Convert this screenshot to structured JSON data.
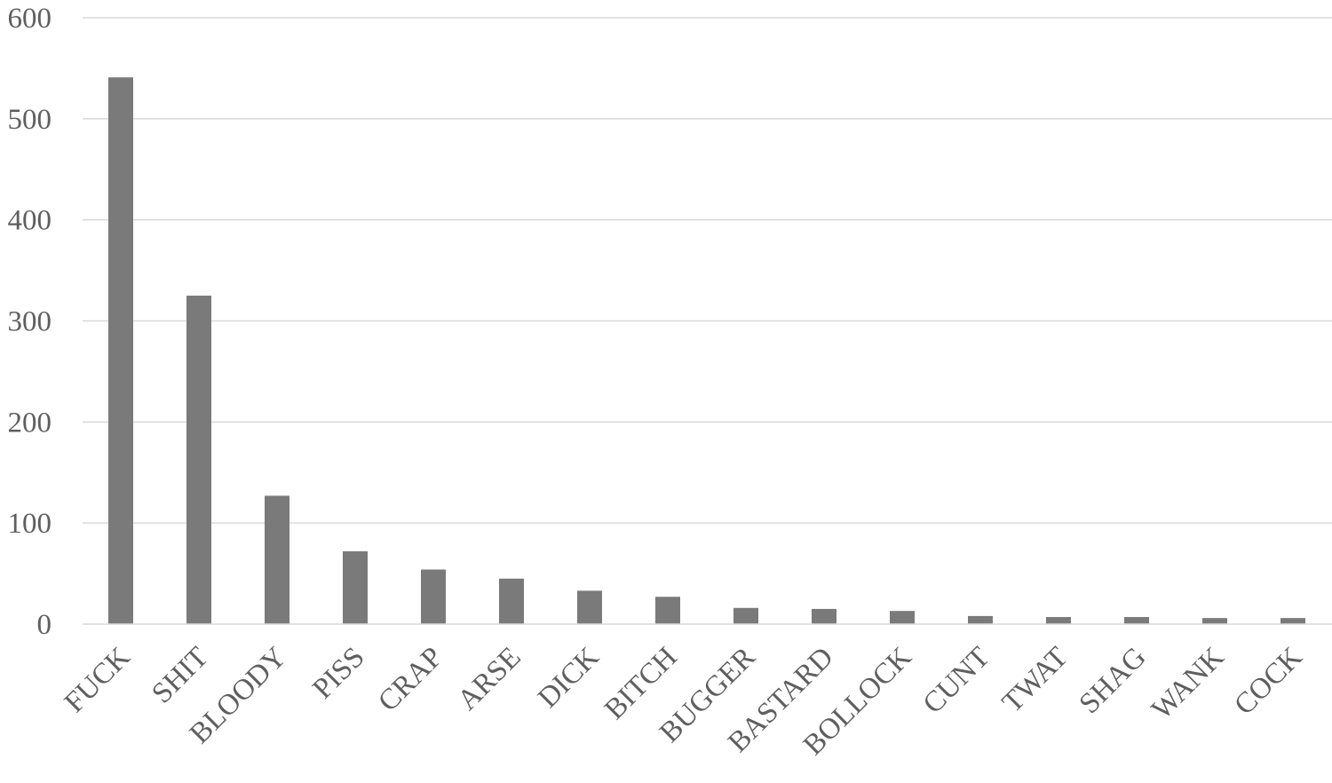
{
  "chart_data": {
    "type": "bar",
    "title": "",
    "xlabel": "",
    "ylabel": "",
    "ylim": [
      0,
      600
    ],
    "yticks": [
      0,
      100,
      200,
      300,
      400,
      500,
      600
    ],
    "grid": true,
    "legend": "none",
    "bar_color": "#7a7a7a",
    "grid_color": "#d9d9d9",
    "text_color": "#5f5f5f",
    "categories": [
      "FUCK",
      "SHIT",
      "BLOODY",
      "PISS",
      "CRAP",
      "ARSE",
      "DICK",
      "BITCH",
      "BUGGER",
      "BASTARD",
      "BOLLOCK",
      "CUNT",
      "TWAT",
      "SHAG",
      "WANK",
      "COCK"
    ],
    "values": [
      541,
      325,
      127,
      72,
      54,
      45,
      33,
      27,
      16,
      15,
      13,
      8,
      7,
      7,
      6,
      6
    ]
  }
}
